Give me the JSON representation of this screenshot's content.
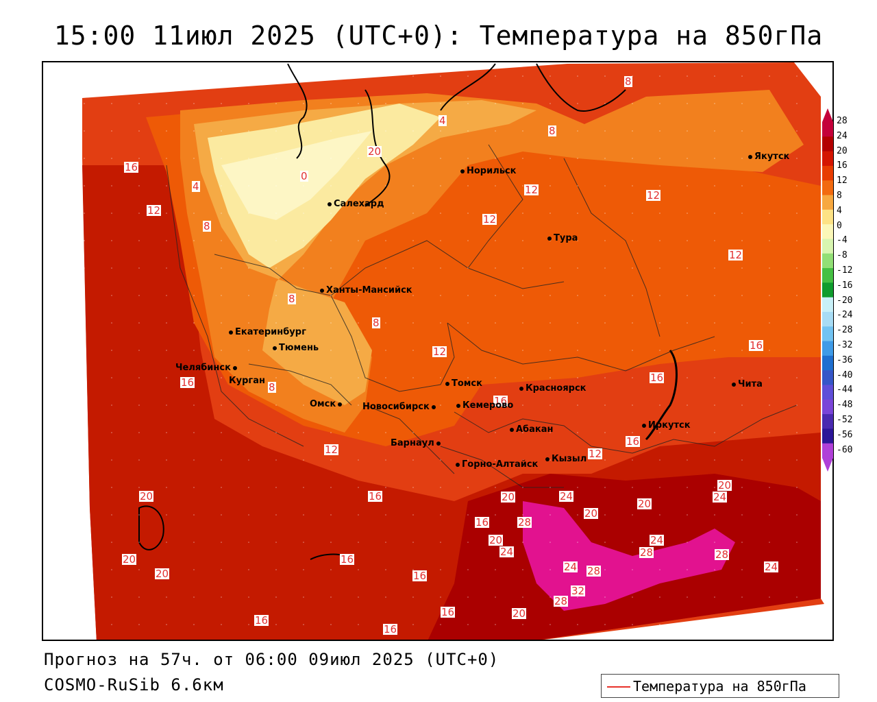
{
  "title": "15:00 11июл 2025 (UTC+0): Температура на 850гПа",
  "footer": {
    "forecast": "Прогноз на 57ч. от 06:00 09июл 2025 (UTC+0)",
    "model": "COSMO-RuSib 6.6км"
  },
  "legend": {
    "label": "Температура на 850гПа",
    "line_color": "#e8322a"
  },
  "colorbar": {
    "labels": [
      "28",
      "24",
      "20",
      "16",
      "12",
      "8",
      "4",
      "0",
      "-4",
      "-8",
      "-12",
      "-16",
      "-20",
      "-24",
      "-28",
      "-32",
      "-36",
      "-40",
      "-44",
      "-48",
      "-52",
      "-56",
      "-60"
    ],
    "colors": [
      "#c4003a",
      "#b30000",
      "#d41500",
      "#e83c00",
      "#f26a10",
      "#f7a840",
      "#fde285",
      "#fbf7b8",
      "#d8f5b0",
      "#92df76",
      "#45c043",
      "#0f9c2e",
      "#c8f0f8",
      "#a8dcf5",
      "#72c3f2",
      "#3f9be8",
      "#1f6fd0",
      "#3656c8",
      "#5f4ed8",
      "#7a45d8",
      "#4a2ab0",
      "#2c1698",
      "#b040d8"
    ]
  },
  "cities": [
    {
      "name": "Норильск"
    },
    {
      "name": "Якутск"
    },
    {
      "name": "Салехард"
    },
    {
      "name": "Тура"
    },
    {
      "name": "Ханты-Мансийск"
    },
    {
      "name": "Екатеринбург"
    },
    {
      "name": "Тюмень"
    },
    {
      "name": "Челябинск"
    },
    {
      "name": "Курган"
    },
    {
      "name": "Омск"
    },
    {
      "name": "Томск"
    },
    {
      "name": "Красноярск"
    },
    {
      "name": "Новосибирск"
    },
    {
      "name": "Кемерово"
    },
    {
      "name": "Абакан"
    },
    {
      "name": "Барнаул"
    },
    {
      "name": "Иркутск"
    },
    {
      "name": "Кызыл"
    },
    {
      "name": "Горно-Алтайск"
    },
    {
      "name": "Чита"
    }
  ],
  "isolines": [
    "8",
    "4",
    "8",
    "0",
    "16",
    "12",
    "4",
    "8",
    "12",
    "12",
    "12",
    "12",
    "8",
    "8",
    "12",
    "16",
    "16",
    "16",
    "16",
    "8",
    "12",
    "16",
    "12",
    "20",
    "16",
    "20",
    "24",
    "20",
    "20",
    "24",
    "16",
    "20",
    "28",
    "20",
    "24",
    "24",
    "28",
    "28",
    "20",
    "16",
    "16",
    "28",
    "24",
    "20",
    "24",
    "32",
    "28",
    "16",
    "16",
    "20",
    "16",
    "20"
  ]
}
